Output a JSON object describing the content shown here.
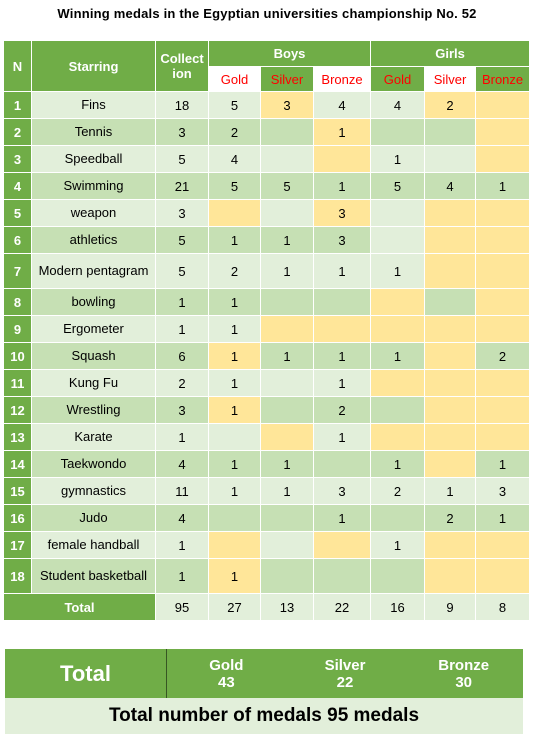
{
  "title": "Winning medals in the Egyptian universities championship No. 52",
  "headers": {
    "n": "N",
    "starring": "Starring",
    "collection": "Collect ion",
    "boys": "Boys",
    "girls": "Girls",
    "gold": "Gold",
    "silver": "Silver",
    "bronze": "Bronze"
  },
  "rows": [
    {
      "n": "1",
      "sport": "Fins",
      "total": "18",
      "bg": "5",
      "bs": "3",
      "bb": "4",
      "gg": "4",
      "gs": "2",
      "gb": ""
    },
    {
      "n": "2",
      "sport": "Tennis",
      "total": "3",
      "bg": "2",
      "bs": "",
      "bb": "1",
      "gg": "",
      "gs": "",
      "gb": ""
    },
    {
      "n": "3",
      "sport": "Speedball",
      "total": "5",
      "bg": "4",
      "bs": "",
      "bb": "",
      "gg": "1",
      "gs": "",
      "gb": ""
    },
    {
      "n": "4",
      "sport": "Swimming",
      "total": "21",
      "bg": "5",
      "bs": "5",
      "bb": "1",
      "gg": "5",
      "gs": "4",
      "gb": "1"
    },
    {
      "n": "5",
      "sport": "weapon",
      "total": "3",
      "bg": "",
      "bs": "",
      "bb": "3",
      "gg": "",
      "gs": "",
      "gb": ""
    },
    {
      "n": "6",
      "sport": "athletics",
      "total": "5",
      "bg": "1",
      "bs": "1",
      "bb": "3",
      "gg": "",
      "gs": "",
      "gb": ""
    },
    {
      "n": "7",
      "sport": "Modern pentagram",
      "total": "5",
      "bg": "2",
      "bs": "1",
      "bb": "1",
      "gg": "1",
      "gs": "",
      "gb": ""
    },
    {
      "n": "8",
      "sport": "bowling",
      "total": "1",
      "bg": "1",
      "bs": "",
      "bb": "",
      "gg": "",
      "gs": "",
      "gb": ""
    },
    {
      "n": "9",
      "sport": "Ergometer",
      "total": "1",
      "bg": "1",
      "bs": "",
      "bb": "",
      "gg": "",
      "gs": "",
      "gb": ""
    },
    {
      "n": "10",
      "sport": "Squash",
      "total": "6",
      "bg": "1",
      "bs": "1",
      "bb": "1",
      "gg": "1",
      "gs": "",
      "gb": "2"
    },
    {
      "n": "11",
      "sport": "Kung Fu",
      "total": "2",
      "bg": "1",
      "bs": "",
      "bb": "1",
      "gg": "",
      "gs": "",
      "gb": ""
    },
    {
      "n": "12",
      "sport": "Wrestling",
      "total": "3",
      "bg": "1",
      "bs": "",
      "bb": "2",
      "gg": "",
      "gs": "",
      "gb": ""
    },
    {
      "n": "13",
      "sport": "Karate",
      "total": "1",
      "bg": "",
      "bs": "",
      "bb": "1",
      "gg": "",
      "gs": "",
      "gb": ""
    },
    {
      "n": "14",
      "sport": "Taekwondo",
      "total": "4",
      "bg": "1",
      "bs": "1",
      "bb": "",
      "gg": "1",
      "gs": "",
      "gb": "1"
    },
    {
      "n": "15",
      "sport": "gymnastics",
      "total": "11",
      "bg": "1",
      "bs": "1",
      "bb": "3",
      "gg": "2",
      "gs": "1",
      "gb": "3"
    },
    {
      "n": "16",
      "sport": "Judo",
      "total": "4",
      "bg": "",
      "bs": "",
      "bb": "1",
      "gg": "",
      "gs": "2",
      "gb": "1"
    },
    {
      "n": "17",
      "sport": "female handball",
      "total": "1",
      "bg": "",
      "bs": "",
      "bb": "",
      "gg": "1",
      "gs": "",
      "gb": ""
    },
    {
      "n": "18",
      "sport": "Student basketball",
      "total": "1",
      "bg": "1",
      "bs": "",
      "bb": "",
      "gg": "",
      "gs": "",
      "gb": ""
    }
  ],
  "totals": {
    "label": "Total",
    "total": "95",
    "bg": "27",
    "bs": "13",
    "bb": "22",
    "gg": "16",
    "gs": "9",
    "gb": "8"
  },
  "summary": {
    "label": "Total",
    "gold_label": "Gold",
    "gold": "43",
    "silver_label": "Silver",
    "silver": "22",
    "bronze_label": "Bronze",
    "bronze": "30"
  },
  "grand_total": "Total number of medals 95 medals",
  "colors": {
    "green": "#70ad47",
    "light": "#e2efda",
    "mid": "#c6e0b4",
    "yellow": "#ffe699",
    "red": "#ff0000"
  }
}
